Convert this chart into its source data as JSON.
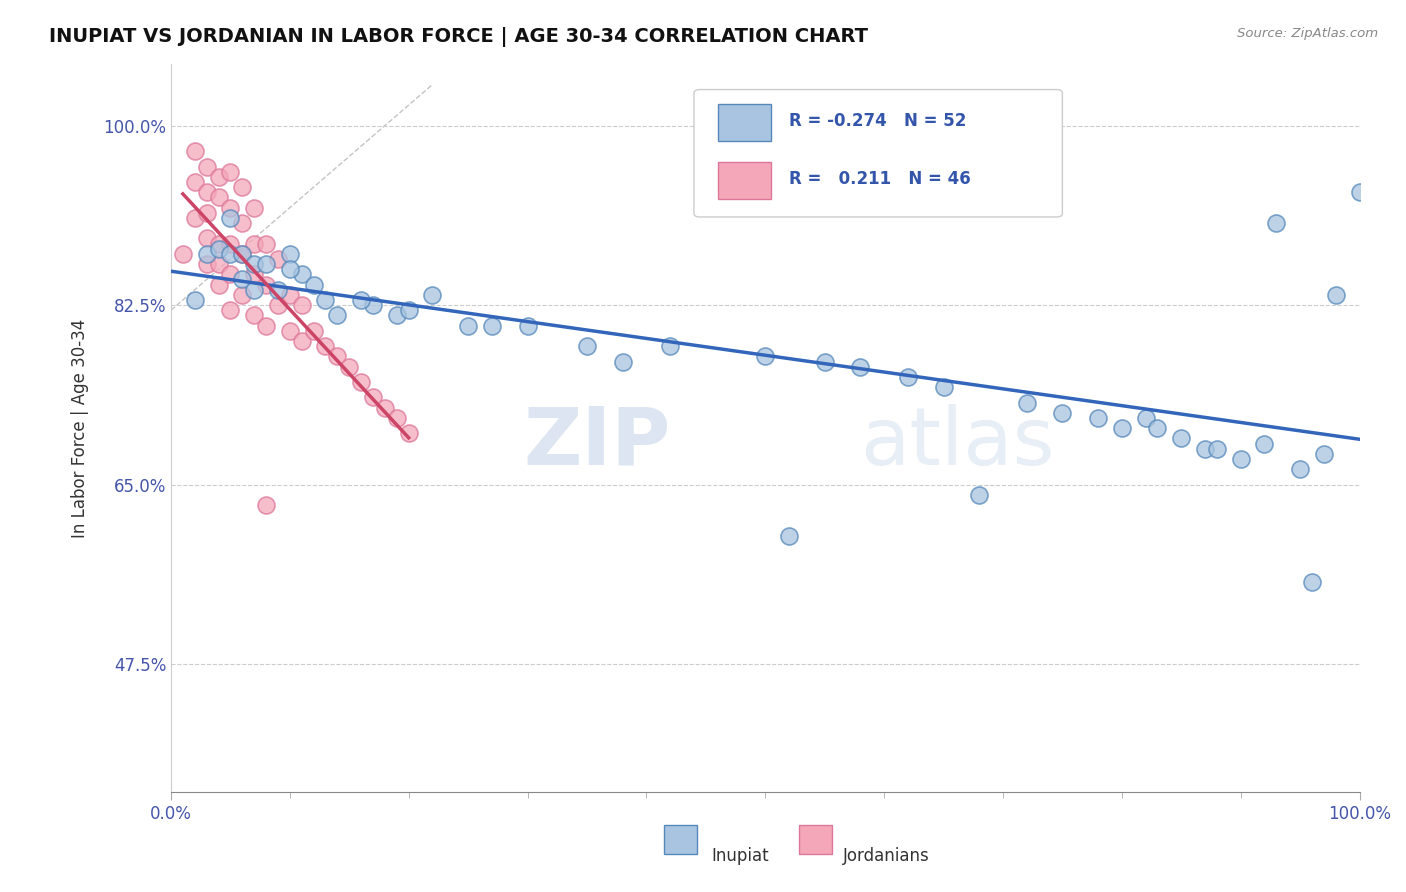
{
  "title": "INUPIAT VS JORDANIAN IN LABOR FORCE | AGE 30-34 CORRELATION CHART",
  "source_text": "Source: ZipAtlas.com",
  "ylabel": "In Labor Force | Age 30-34",
  "xlim": [
    0.0,
    1.0
  ],
  "ylim": [
    0.35,
    1.06
  ],
  "yticks": [
    0.475,
    0.65,
    0.825,
    1.0
  ],
  "ytick_labels": [
    "47.5%",
    "65.0%",
    "82.5%",
    "100.0%"
  ],
  "xtick_labels": [
    "0.0%",
    "100.0%"
  ],
  "xticks": [
    0.0,
    1.0
  ],
  "inupiat_color": "#a8c4e0",
  "jordanian_color": "#f4a7b9",
  "inupiat_edge": "#5588bb",
  "jordanian_edge": "#dd7799",
  "trendline_inupiat_color": "#3366bb",
  "trendline_jordanian_color": "#cc4466",
  "watermark_zip": "ZIP",
  "watermark_atlas": "atlas",
  "inupiat_x": [
    0.02,
    0.03,
    0.04,
    0.05,
    0.05,
    0.06,
    0.06,
    0.07,
    0.07,
    0.08,
    0.09,
    0.1,
    0.11,
    0.12,
    0.14,
    0.17,
    0.19,
    0.22,
    0.25,
    0.3,
    0.35,
    0.42,
    0.5,
    0.52,
    0.55,
    0.58,
    0.62,
    0.65,
    0.68,
    0.72,
    0.75,
    0.78,
    0.8,
    0.82,
    0.83,
    0.85,
    0.87,
    0.88,
    0.9,
    0.92,
    0.93,
    0.95,
    0.96,
    0.97,
    0.98,
    1.0,
    0.1,
    0.13,
    0.16,
    0.2,
    0.27,
    0.38
  ],
  "inupiat_y": [
    0.83,
    0.875,
    0.88,
    0.875,
    0.91,
    0.875,
    0.85,
    0.865,
    0.84,
    0.865,
    0.84,
    0.875,
    0.855,
    0.845,
    0.815,
    0.825,
    0.815,
    0.835,
    0.805,
    0.805,
    0.785,
    0.785,
    0.775,
    0.6,
    0.77,
    0.765,
    0.755,
    0.745,
    0.64,
    0.73,
    0.72,
    0.715,
    0.705,
    0.715,
    0.705,
    0.695,
    0.685,
    0.685,
    0.675,
    0.69,
    0.905,
    0.665,
    0.555,
    0.68,
    0.835,
    0.935,
    0.86,
    0.83,
    0.83,
    0.82,
    0.805,
    0.77
  ],
  "jordanian_x": [
    0.01,
    0.02,
    0.02,
    0.02,
    0.03,
    0.03,
    0.03,
    0.03,
    0.03,
    0.04,
    0.04,
    0.04,
    0.04,
    0.04,
    0.05,
    0.05,
    0.05,
    0.05,
    0.05,
    0.06,
    0.06,
    0.06,
    0.06,
    0.07,
    0.07,
    0.07,
    0.07,
    0.08,
    0.08,
    0.08,
    0.09,
    0.09,
    0.1,
    0.1,
    0.11,
    0.11,
    0.12,
    0.13,
    0.14,
    0.15,
    0.16,
    0.17,
    0.18,
    0.19,
    0.2,
    0.08
  ],
  "jordanian_y": [
    0.875,
    0.975,
    0.945,
    0.91,
    0.96,
    0.935,
    0.915,
    0.89,
    0.865,
    0.95,
    0.93,
    0.885,
    0.865,
    0.845,
    0.955,
    0.92,
    0.885,
    0.855,
    0.82,
    0.94,
    0.905,
    0.875,
    0.835,
    0.92,
    0.885,
    0.855,
    0.815,
    0.885,
    0.845,
    0.805,
    0.87,
    0.825,
    0.835,
    0.8,
    0.825,
    0.79,
    0.8,
    0.785,
    0.775,
    0.765,
    0.75,
    0.735,
    0.725,
    0.715,
    0.7,
    0.63
  ]
}
